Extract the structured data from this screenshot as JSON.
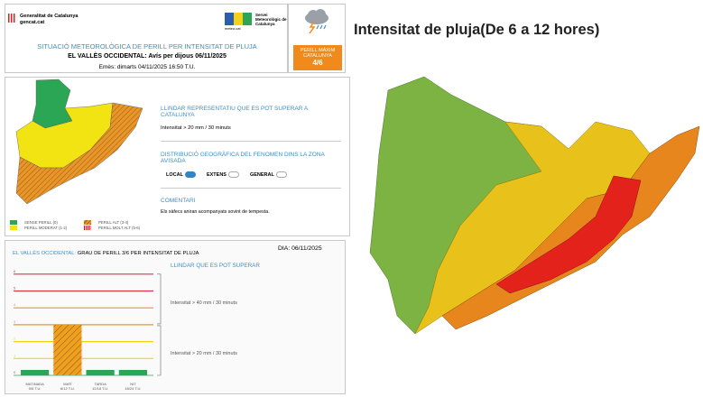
{
  "header": {
    "org_name": "Generalitat de Catalunya",
    "org_site": "gencat.cat",
    "meteo_label": "meteo.cat",
    "service_name": "Servei Meteorològic de Catalunya",
    "title": "SITUACIÓ METEOROLÒGICA DE PERILL PER INTENSITAT DE PLUJA",
    "subtitle": "EL VALLÈS OCCIDENTAL: Avís per dijous 06/11/2025",
    "issued": "Emès: dimarts 04/11/2025 16:50 T.U.",
    "max_danger_label": "PERILL MÀXIM CATALUNYA",
    "max_danger_value": "4/6",
    "weather_icon": "rain-storm-cloud-icon",
    "accent": "#f08a1c"
  },
  "info": {
    "threshold_heading": "LLINDAR REPRESENTATIU QUE ES POT SUPERAR A CATALUNYA",
    "threshold_value": "Intensitat > 20 mm / 30 minuts",
    "distribution_heading": "DISTRIBUCIÓ GEOGRÀFICA DEL FENOMEN DINS LA ZONA AVISADA",
    "distribution_options": [
      {
        "label": "LOCAL",
        "selected": true
      },
      {
        "label": "EXTENS",
        "selected": false
      },
      {
        "label": "GENERAL",
        "selected": false
      }
    ],
    "comment_heading": "COMENTARI",
    "comment": "Els xàfecs aniran acompanyats sovint de tempesta."
  },
  "legend": [
    {
      "label": "SENSE PERILL (0)",
      "color": "#2aa655"
    },
    {
      "label": "PERILL MODERAT (1-2)",
      "color": "#f2e313"
    },
    {
      "label": "PERILL ALT (3-4)",
      "color": "#e8962a"
    },
    {
      "label": "PERILL MOLT ALT (5-6)",
      "color": "#e02020"
    }
  ],
  "danger_panel": {
    "region": "EL VALLÈS OCCIDENTAL:",
    "title": "GRAU DE PERILL 3/6 PER INTENSITAT DE PLUJA",
    "date": "DIA: 06/11/2025",
    "threshold_heading": "LLINDAR QUE ES POT SUPERAR",
    "threshold_high": "Intensitat > 40 mm / 30 minuts",
    "threshold_low": "Intensitat > 20 mm / 30 minuts"
  },
  "chart_data": {
    "type": "bar",
    "categories": [
      "MATINADA 0/6 T.U.",
      "MATÍ 6/12 T.U.",
      "TARDA 12/18 T.U.",
      "NIT 18/24 T.U."
    ],
    "category_names": [
      "MATINADA",
      "MATÍ",
      "TARDA",
      "NIT"
    ],
    "category_times": [
      "0/6 T.U.",
      "6/12 T.U.",
      "12/18 T.U.",
      "18/24 T.U."
    ],
    "values": [
      0,
      3,
      0,
      0
    ],
    "ylim": [
      0,
      6
    ],
    "yticks": [
      "0",
      "1",
      "2",
      "3",
      "4",
      "5",
      "6"
    ],
    "level_colors": [
      "#2aa655",
      "#f2d313",
      "#f2d313",
      "#e8962a",
      "#e8962a",
      "#d9364a",
      "#d9364a"
    ]
  },
  "map": {
    "title": "Intensitat de pluja(De 6 a 12 hores)",
    "colors": {
      "green": "#7cb342",
      "yellow": "#e8c21a",
      "orange": "#e8861e",
      "red": "#e3221c"
    }
  }
}
